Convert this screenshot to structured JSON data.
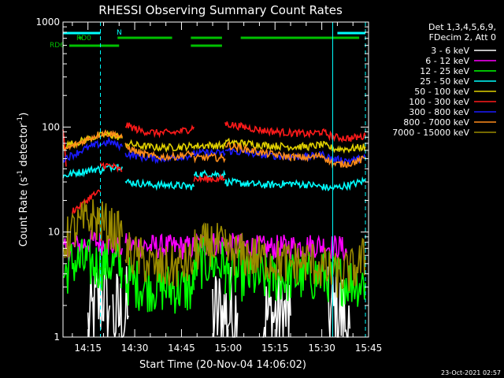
{
  "chart_data": {
    "type": "line",
    "title": "RHESSI Observing Summary Count Rates",
    "xlabel": "Start Time (20-Nov-04 14:06:02)",
    "ylabel_main": "Count Rate (s",
    "ylabel_sup1": "-1",
    "ylabel_mid": " detector",
    "ylabel_sup2": "-1",
    "ylabel_end": ")",
    "yscale": "log",
    "ylim": [
      1,
      1000
    ],
    "xlim_min": [
      7,
      105
    ],
    "y_ticks": [
      {
        "label": "1",
        "value": 1
      },
      {
        "label": "10",
        "value": 10
      },
      {
        "label": "100",
        "value": 100
      },
      {
        "label": "1000",
        "value": 1000
      }
    ],
    "x_ticks": [
      {
        "label": "14:15",
        "min": 15
      },
      {
        "label": "14:30",
        "min": 30
      },
      {
        "label": "14:45",
        "min": 45
      },
      {
        "label": "15:00",
        "min": 60
      },
      {
        "label": "15:15",
        "min": 75
      },
      {
        "label": "15:30",
        "min": 90
      },
      {
        "label": "15:45",
        "min": 105
      }
    ],
    "legend_header": [
      "Det 1,3,4,5,6,9,",
      "FDecim 2, Att 0"
    ],
    "legend": [
      {
        "label": "3 - 6 keV",
        "color": "#ffffff"
      },
      {
        "label": "6 - 12 keV",
        "color": "#ff00ff"
      },
      {
        "label": "12 - 25 keV",
        "color": "#00ff00"
      },
      {
        "label": "25 - 50 keV",
        "color": "#00ffff"
      },
      {
        "label": "50 - 100 keV",
        "color": "#e0d000"
      },
      {
        "label": "100 - 300 keV",
        "color": "#ff1a1a"
      },
      {
        "label": "300 - 800 keV",
        "color": "#1a1aff"
      },
      {
        "label": "800 - 7000 keV",
        "color": "#ff8c1a"
      },
      {
        "label": "7000 - 15000 keV",
        "color": "#9a8a00"
      }
    ],
    "flags": [
      {
        "label": "N",
        "color": "#00ffff",
        "segments": [
          [
            7,
            19
          ],
          [
            95,
            104
          ]
        ]
      },
      {
        "label": "RD0",
        "color": "#00c000",
        "segments": [
          [
            12,
            13
          ],
          [
            24.5,
            42
          ],
          [
            48,
            58
          ],
          [
            64,
            102
          ]
        ]
      },
      {
        "label": "RD6",
        "color": "#00c000",
        "segments": [
          [
            9,
            25
          ],
          [
            48,
            58
          ]
        ]
      }
    ],
    "vertical_lines": [
      {
        "min": 7,
        "style": "solid",
        "color": "#00ffff"
      },
      {
        "min": 19,
        "style": "dashed",
        "color": "#00ffff"
      },
      {
        "min": 93.5,
        "style": "solid",
        "color": "#00ffff"
      },
      {
        "min": 104,
        "style": "dashed",
        "color": "#00ffff"
      }
    ],
    "series": [
      {
        "name": "3 - 6 keV",
        "color": "#ffffff",
        "segments": [
          [
            [
              15,
              1.2
            ],
            [
              20,
              2.8
            ],
            [
              21,
              1.6
            ],
            [
              22,
              2.0
            ]
          ],
          [
            [
              23,
              1.5
            ],
            [
              28,
              1.6
            ]
          ],
          [
            [
              55,
              1.6
            ],
            [
              63,
              1.7
            ]
          ],
          [
            [
              71,
              1.5
            ],
            [
              80,
              1.6
            ]
          ],
          [
            [
              92,
              1.5
            ],
            [
              95,
              1.8
            ],
            [
              99,
              1.2
            ]
          ]
        ]
      },
      {
        "name": "6 - 12 keV",
        "color": "#ff00ff",
        "segments": [
          [
            [
              7,
              6.5
            ],
            [
              12,
              7.5
            ],
            [
              17,
              8.2
            ],
            [
              22,
              7.5
            ],
            [
              26,
              7.0
            ]
          ],
          [
            [
              27,
              7.5
            ],
            [
              35,
              7.3
            ],
            [
              42,
              7.2
            ],
            [
              49,
              7.1
            ]
          ],
          [
            [
              49,
              7.6
            ],
            [
              55,
              7.8
            ],
            [
              59,
              7.5
            ]
          ],
          [
            [
              59,
              7.5
            ],
            [
              65,
              7.4
            ],
            [
              72,
              7.0
            ],
            [
              80,
              7.3
            ],
            [
              86,
              7.4
            ],
            [
              89,
              7.5
            ],
            [
              93,
              7.3
            ],
            [
              96,
              7.2
            ],
            [
              98,
              6.3
            ]
          ]
        ]
      },
      {
        "name": "12 - 25 keV",
        "color": "#00ff00",
        "segments": [
          [
            [
              7,
              3.8
            ],
            [
              10,
              5.2
            ],
            [
              14,
              5.0
            ],
            [
              18,
              4.8
            ],
            [
              22,
              5.0
            ],
            [
              26,
              4.6
            ]
          ],
          [
            [
              27,
              3.5
            ],
            [
              32,
              3.1
            ],
            [
              37,
              3.0
            ],
            [
              42,
              2.9
            ],
            [
              49,
              2.8
            ]
          ],
          [
            [
              49,
              4.8
            ],
            [
              54,
              5.2
            ],
            [
              59,
              4.8
            ]
          ],
          [
            [
              59,
              4.0
            ],
            [
              65,
              3.8
            ],
            [
              72,
              3.6
            ],
            [
              80,
              3.7
            ],
            [
              88,
              3.8
            ],
            [
              93,
              3.7
            ],
            [
              99,
              3.4
            ],
            [
              104,
              3.3
            ]
          ]
        ]
      },
      {
        "name": "25 - 50 keV",
        "color": "#00ffff",
        "segments": [
          [
            [
              7,
              34
            ],
            [
              10,
              36
            ],
            [
              14,
              38
            ],
            [
              18,
              40
            ],
            [
              20,
              38
            ]
          ],
          [
            [
              20,
              40
            ],
            [
              24,
              43
            ],
            [
              26,
              42
            ]
          ],
          [
            [
              27,
              30
            ],
            [
              32,
              29
            ],
            [
              37,
              28
            ],
            [
              42,
              28
            ],
            [
              49,
              27
            ]
          ],
          [
            [
              49,
              35
            ],
            [
              54,
              36
            ],
            [
              59,
              35
            ]
          ],
          [
            [
              59,
              30
            ],
            [
              65,
              29
            ],
            [
              72,
              28
            ],
            [
              80,
              29
            ],
            [
              87,
              28
            ],
            [
              93,
              26
            ],
            [
              99,
              28
            ],
            [
              104,
              31
            ]
          ]
        ]
      },
      {
        "name": "50 - 100 keV",
        "color": "#e0d000",
        "segments": [
          [
            [
              7,
              66
            ],
            [
              12,
              72
            ],
            [
              17,
              80
            ],
            [
              21,
              85
            ],
            [
              24,
              82
            ],
            [
              26,
              78
            ]
          ],
          [
            [
              27,
              70
            ],
            [
              32,
              66
            ],
            [
              37,
              64
            ],
            [
              42,
              64
            ],
            [
              49,
              66
            ]
          ],
          [
            [
              49,
              66
            ],
            [
              54,
              67
            ],
            [
              59,
              66
            ]
          ],
          [
            [
              59,
              72
            ],
            [
              65,
              70
            ],
            [
              72,
              67
            ],
            [
              80,
              65
            ],
            [
              86,
              65
            ],
            [
              90,
              68
            ],
            [
              94,
              62
            ],
            [
              99,
              62
            ],
            [
              104,
              65
            ]
          ]
        ]
      },
      {
        "name": "100 - 300 keV",
        "color": "#ff1a1a",
        "segments": [
          [
            [
              7,
              96
            ],
            [
              8,
              42
            ]
          ],
          [
            [
              10,
              16
            ],
            [
              13,
              18
            ],
            [
              16,
              22
            ],
            [
              19,
              24
            ]
          ],
          [
            [
              19,
              44
            ],
            [
              23,
              42
            ],
            [
              26,
              38
            ]
          ],
          [
            [
              27,
              105
            ],
            [
              32,
              92
            ],
            [
              37,
              88
            ],
            [
              42,
              88
            ],
            [
              47,
              94
            ],
            [
              49,
              100
            ]
          ],
          [
            [
              49,
              32
            ],
            [
              54,
              32
            ],
            [
              59,
              32
            ]
          ],
          [
            [
              59,
              108
            ],
            [
              65,
              100
            ],
            [
              72,
              92
            ],
            [
              80,
              88
            ],
            [
              86,
              86
            ],
            [
              90,
              90
            ],
            [
              94,
              80
            ],
            [
              99,
              78
            ],
            [
              104,
              82
            ]
          ]
        ]
      },
      {
        "name": "300 - 800 keV",
        "color": "#1a1aff",
        "segments": [
          [
            [
              7,
              50
            ],
            [
              10,
              54
            ],
            [
              14,
              62
            ],
            [
              18,
              68
            ],
            [
              22,
              72
            ],
            [
              26,
              65
            ]
          ],
          [
            [
              27,
              56
            ],
            [
              32,
              52
            ],
            [
              37,
              50
            ],
            [
              42,
              51
            ],
            [
              49,
              54
            ]
          ],
          [
            [
              49,
              56
            ],
            [
              54,
              57
            ],
            [
              59,
              56
            ]
          ],
          [
            [
              59,
              60
            ],
            [
              65,
              57
            ],
            [
              72,
              54
            ],
            [
              80,
              52
            ],
            [
              86,
              52
            ],
            [
              90,
              55
            ],
            [
              94,
              49
            ],
            [
              99,
              48
            ],
            [
              104,
              51
            ]
          ]
        ]
      },
      {
        "name": "800 - 7000 keV",
        "color": "#ff8c1a",
        "segments": [
          [
            [
              7,
              60
            ],
            [
              12,
              70
            ],
            [
              17,
              82
            ],
            [
              20,
              88
            ],
            [
              24,
              85
            ],
            [
              26,
              80
            ]
          ],
          [
            [
              27,
              65
            ],
            [
              32,
              56
            ],
            [
              37,
              52
            ],
            [
              42,
              52
            ],
            [
              49,
              56
            ]
          ],
          [
            [
              49,
              50
            ],
            [
              54,
              52
            ],
            [
              59,
              50
            ]
          ],
          [
            [
              59,
              68
            ],
            [
              65,
              62
            ],
            [
              72,
              56
            ],
            [
              80,
              52
            ],
            [
              86,
              51
            ],
            [
              90,
              54
            ],
            [
              94,
              44
            ],
            [
              99,
              45
            ],
            [
              104,
              50
            ]
          ]
        ]
      },
      {
        "name": "7000 - 15000 keV",
        "color": "#9a8a00",
        "segments": [
          [
            [
              7,
              7.5
            ],
            [
              10,
              10
            ],
            [
              13,
              12
            ],
            [
              16,
              13.5
            ],
            [
              19,
              12.5
            ],
            [
              22,
              11
            ],
            [
              26,
              9
            ]
          ],
          [
            [
              27,
              6.5
            ],
            [
              32,
              5.5
            ],
            [
              37,
              4.5
            ],
            [
              42,
              4.5
            ],
            [
              49,
              5.2
            ]
          ],
          [
            [
              49,
              6.5
            ],
            [
              54,
              7.8
            ],
            [
              59,
              7.0
            ]
          ],
          [
            [
              59,
              6.5
            ],
            [
              65,
              6.0
            ],
            [
              72,
              5.5
            ],
            [
              80,
              5.0
            ],
            [
              86,
              5.3
            ],
            [
              90,
              4.5
            ],
            [
              95,
              3.8
            ],
            [
              100,
              4.3
            ],
            [
              104,
              5.8
            ]
          ]
        ]
      }
    ],
    "timestamp": "23-Oct-2021 02:57"
  }
}
